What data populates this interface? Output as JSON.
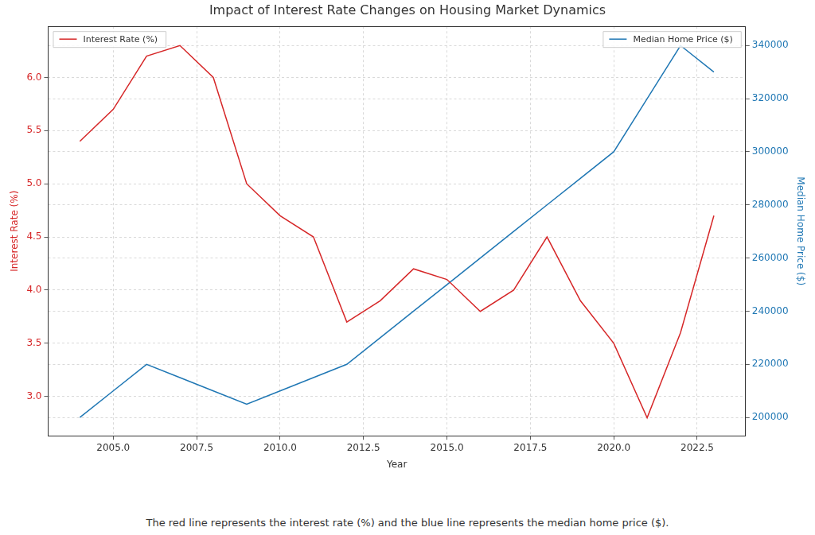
{
  "chart_data": {
    "type": "line",
    "title": "Impact of Interest Rate Changes on Housing Market Dynamics",
    "x_label": "Year",
    "y_label": "Interest Rate (%)",
    "y2_label": "Median Home Price ($)",
    "caption": "The red line represents the interest rate (%) and the blue line represents the median home price ($).",
    "x": [
      2004,
      2005,
      2006,
      2007,
      2008,
      2009,
      2010,
      2011,
      2012,
      2013,
      2014,
      2015,
      2016,
      2017,
      2018,
      2019,
      2020,
      2021,
      2022,
      2023
    ],
    "series": [
      {
        "name": "Interest Rate (%)",
        "color": "#d62728",
        "values": [
          5.4,
          5.7,
          6.2,
          6.3,
          6.0,
          5.0,
          4.7,
          4.5,
          3.7,
          3.9,
          4.2,
          4.1,
          3.8,
          4.0,
          4.5,
          3.9,
          3.5,
          2.8,
          3.6,
          4.7
        ]
      },
      {
        "name": "Median Home Price ($)",
        "color": "#1f77b4",
        "axis": "y2",
        "values": [
          200000,
          210000,
          220000,
          215000,
          210000,
          205000,
          210000,
          215000,
          220000,
          230000,
          240000,
          250000,
          260000,
          270000,
          280000,
          290000,
          300000,
          320000,
          340000,
          330000
        ]
      }
    ],
    "xlim": [
      2003.05,
      2023.95
    ],
    "xticks": [
      {
        "value": 2005,
        "label": "2005.0"
      },
      {
        "value": 2007.5,
        "label": "2007.5"
      },
      {
        "value": 2010,
        "label": "2010.0"
      },
      {
        "value": 2012.5,
        "label": "2012.5"
      },
      {
        "value": 2015,
        "label": "2015.0"
      },
      {
        "value": 2017.5,
        "label": "2017.5"
      },
      {
        "value": 2020,
        "label": "2020.0"
      },
      {
        "value": 2022.5,
        "label": "2022.5"
      }
    ],
    "ylim": [
      2.63,
      6.48
    ],
    "yticks": [
      {
        "value": 3,
        "label": "3.0"
      },
      3.5,
      {
        "value": 4,
        "label": "4.0"
      },
      4.5,
      {
        "value": 5,
        "label": "5.0"
      },
      5.5,
      {
        "value": 6,
        "label": "6.0"
      }
    ],
    "y2lim": [
      193100,
      347200
    ],
    "y2ticks": [
      200000,
      220000,
      240000,
      260000,
      280000,
      300000,
      320000,
      340000
    ],
    "grid": true,
    "legend": "top"
  }
}
